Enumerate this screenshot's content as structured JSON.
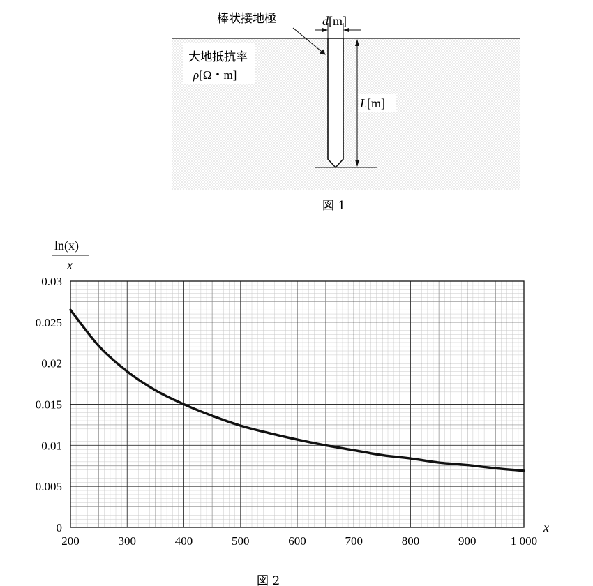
{
  "figure1": {
    "rod_label": "棒状接地極",
    "soil_label_line1": "大地抵抗率",
    "soil_label_rho": "ρ",
    "soil_label_unit": "[Ω・m]",
    "diameter_sym": "d",
    "diameter_unit": "[m]",
    "length_sym": "L",
    "length_unit": "[m]",
    "caption": "図 1"
  },
  "figure2": {
    "caption": "図 2",
    "ylabel_numerator": "ln(x)",
    "ylabel_denominator": "x",
    "xlabel": "x"
  },
  "chart_data": {
    "type": "line",
    "xlabel": "x",
    "ylabel": "ln(x)/x",
    "xlim": [
      200,
      1000
    ],
    "ylim": [
      0,
      0.03
    ],
    "x_ticks": [
      200,
      300,
      400,
      500,
      600,
      700,
      800,
      900,
      1000
    ],
    "x_tick_labels": [
      "200",
      "300",
      "400",
      "500",
      "600",
      "700",
      "800",
      "900",
      "1 000"
    ],
    "y_ticks": [
      0,
      0.005,
      0.01,
      0.015,
      0.02,
      0.025,
      0.03
    ],
    "y_tick_labels": [
      "0",
      "0.005",
      "0.01",
      "0.015",
      "0.02",
      "0.025",
      "0.03"
    ],
    "grid": true,
    "series": [
      {
        "x": [
          200,
          250,
          300,
          350,
          400,
          450,
          500,
          550,
          600,
          650,
          700,
          750,
          800,
          850,
          900,
          950,
          1000
        ],
        "y": [
          0.0265,
          0.0221,
          0.019,
          0.0167,
          0.015,
          0.0136,
          0.0124,
          0.0115,
          0.0107,
          0.01,
          0.0094,
          0.0088,
          0.0084,
          0.0079,
          0.0076,
          0.0072,
          0.0069
        ]
      }
    ]
  }
}
